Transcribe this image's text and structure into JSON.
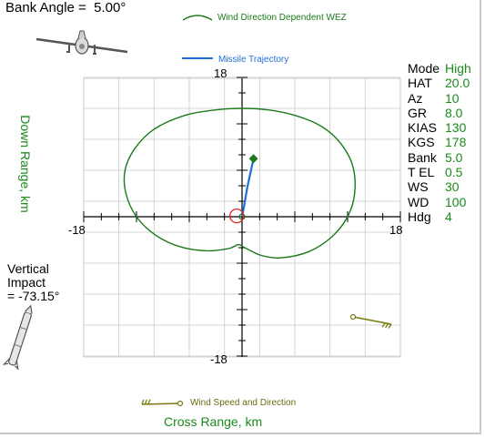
{
  "header": {
    "bank_angle_label": "Bank Angle =",
    "bank_angle_value": "5.00°"
  },
  "legend": {
    "wez": "Wind Direction Dependent WEZ",
    "trajectory": "Missile Trajectory",
    "wind": "Wind Speed and Direction"
  },
  "params": [
    {
      "key": "Mode",
      "value": "High"
    },
    {
      "key": "HAT",
      "value": "20.0"
    },
    {
      "key": "Az",
      "value": "10"
    },
    {
      "key": "GR",
      "value": "8.0"
    },
    {
      "key": "KIAS",
      "value": "130"
    },
    {
      "key": "KGS",
      "value": "178"
    },
    {
      "key": "Bank",
      "value": "5.0"
    },
    {
      "key": "T EL",
      "value": "0.5"
    },
    {
      "key": "WS",
      "value": "30"
    },
    {
      "key": "WD",
      "value": "100"
    },
    {
      "key": "Hdg",
      "value": "4"
    }
  ],
  "vertical_impact": {
    "line1": "Vertical",
    "line2": "Impact",
    "line3": "= -73.15°"
  },
  "colors": {
    "wez": "#1a7a1a",
    "trajectory": "#1f6fd8",
    "wind": "#7a7a10",
    "grid": "#c8c8c8",
    "target_ring": "#e02020"
  },
  "icons": [
    "aircraft-icon",
    "missile-icon",
    "wind-arrow-icon"
  ],
  "chart_data": {
    "type": "line",
    "xlabel": "Cross Range, km",
    "ylabel": "Down Range, km",
    "xlim": [
      -18,
      18
    ],
    "ylim": [
      -18,
      18
    ],
    "grid": true,
    "tick_labels": {
      "x_min": "-18",
      "x_max": "18",
      "y_min": "-18",
      "y_max": "18"
    },
    "series": [
      {
        "name": "Wind Direction Dependent WEZ",
        "points": [
          [
            0,
            14.0
          ],
          [
            3,
            13.8
          ],
          [
            6,
            13.1
          ],
          [
            9,
            11.7
          ],
          [
            11.2,
            9.5
          ],
          [
            12.6,
            6.5
          ],
          [
            12.8,
            3.0
          ],
          [
            12,
            0
          ],
          [
            10.2,
            -2.6
          ],
          [
            7.6,
            -4.5
          ],
          [
            4.5,
            -5.3
          ],
          [
            2.2,
            -5.0
          ],
          [
            0.3,
            -4.0
          ],
          [
            -0.4,
            -3.6
          ],
          [
            -1.5,
            -4.1
          ],
          [
            -4,
            -4.4
          ],
          [
            -7,
            -3.9
          ],
          [
            -9.8,
            -2.4
          ],
          [
            -12,
            0
          ],
          [
            -13.2,
            3.0
          ],
          [
            -13.3,
            6.0
          ],
          [
            -12.2,
            8.8
          ],
          [
            -10,
            11.3
          ],
          [
            -6.5,
            13.1
          ],
          [
            -3,
            13.8
          ],
          [
            0,
            14.0
          ]
        ]
      },
      {
        "name": "Missile Trajectory",
        "points": [
          [
            0,
            0
          ],
          [
            0.25,
            1.5
          ],
          [
            0.6,
            3.8
          ],
          [
            1.0,
            5.9
          ],
          [
            1.3,
            7.5
          ]
        ]
      }
    ],
    "markers": [
      {
        "type": "impact",
        "x": 1.3,
        "y": 7.5
      },
      {
        "type": "release",
        "x": 0,
        "y": 0
      },
      {
        "type": "target-ring",
        "x": -0.6,
        "y": 0.1
      }
    ]
  }
}
